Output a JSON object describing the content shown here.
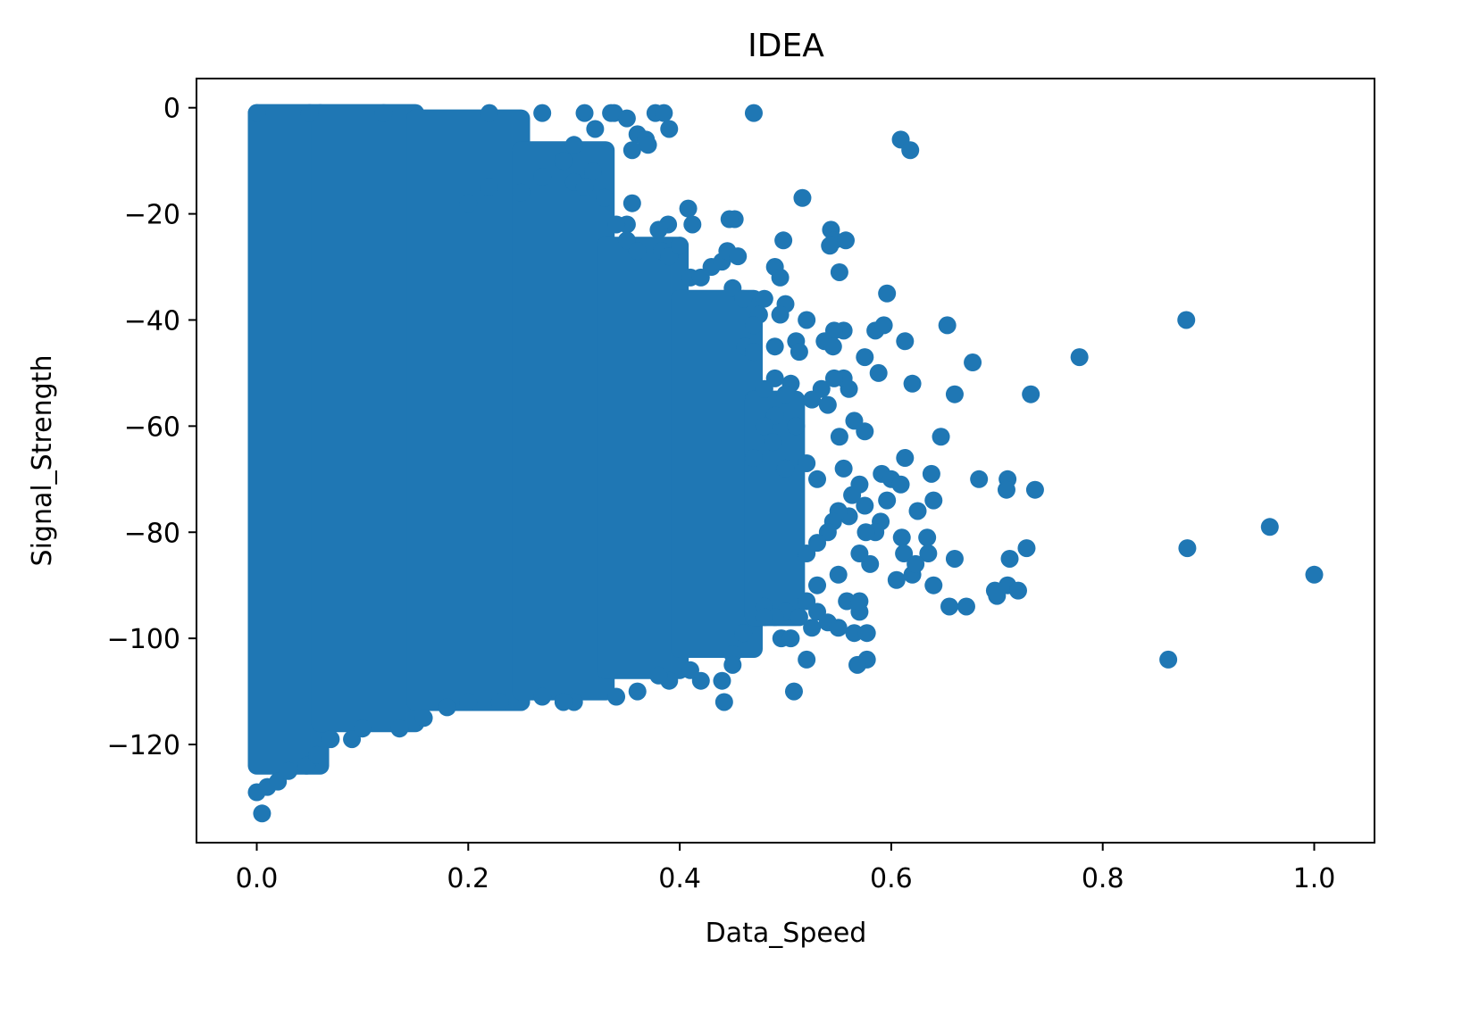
{
  "chart_data": {
    "type": "scatter",
    "title": "IDEA",
    "xlabel": "Data_Speed",
    "ylabel": "Signal_Strength",
    "xlim": [
      -0.057,
      1.057
    ],
    "ylim": [
      -138.5,
      5.5
    ],
    "x_ticks": [
      0.0,
      0.2,
      0.4,
      0.6,
      0.8,
      1.0
    ],
    "x_tick_labels": [
      "0.0",
      "0.2",
      "0.4",
      "0.6",
      "0.8",
      "1.0"
    ],
    "y_ticks": [
      0,
      -20,
      -40,
      -60,
      -80,
      -100,
      -120
    ],
    "y_tick_labels": [
      "0",
      "−20",
      "−40",
      "−60",
      "−80",
      "−100",
      "−120"
    ],
    "grid": false,
    "legend": false,
    "marker_color": "#1f77b4",
    "series": [
      {
        "dense_regions": [
          {
            "x_range": [
              0.0,
              0.06
            ],
            "y_range": [
              -124,
              -1
            ]
          },
          {
            "x_range": [
              0.06,
              0.15
            ],
            "y_range": [
              -116,
              -1
            ]
          },
          {
            "x_range": [
              0.15,
              0.25
            ],
            "y_range": [
              -112,
              -2
            ]
          },
          {
            "x_range": [
              0.25,
              0.33
            ],
            "y_range": [
              -110,
              -8
            ]
          },
          {
            "x_range": [
              0.33,
              0.4
            ],
            "y_range": [
              -106,
              -26
            ]
          },
          {
            "x_range": [
              0.4,
              0.47
            ],
            "y_range": [
              -102,
              -36
            ]
          },
          {
            "x_range": [
              0.47,
              0.51
            ],
            "y_range": [
              -96,
              -55
            ]
          }
        ],
        "points": [
          [
            0.005,
            -133
          ],
          [
            0.0,
            -129
          ],
          [
            0.01,
            -128
          ],
          [
            0.02,
            -127
          ],
          [
            0.03,
            -125
          ],
          [
            0.047,
            -124
          ],
          [
            0.057,
            -122
          ],
          [
            0.07,
            -119
          ],
          [
            0.09,
            -119
          ],
          [
            0.1,
            -117
          ],
          [
            0.135,
            -117
          ],
          [
            0.158,
            -115
          ],
          [
            0.18,
            -113
          ],
          [
            0.0,
            -1
          ],
          [
            0.05,
            -1
          ],
          [
            0.12,
            -1
          ],
          [
            0.22,
            -1
          ],
          [
            0.27,
            -1
          ],
          [
            0.31,
            -1
          ],
          [
            0.335,
            -1
          ],
          [
            0.338,
            -1
          ],
          [
            0.377,
            -1
          ],
          [
            0.385,
            -1
          ],
          [
            0.35,
            -2
          ],
          [
            0.36,
            -5
          ],
          [
            0.368,
            -6
          ],
          [
            0.39,
            -4
          ],
          [
            0.37,
            -7
          ],
          [
            0.355,
            -8
          ],
          [
            0.32,
            -4
          ],
          [
            0.3,
            -7
          ],
          [
            0.29,
            -10
          ],
          [
            0.318,
            -12
          ],
          [
            0.3,
            -14
          ],
          [
            0.31,
            -15
          ],
          [
            0.27,
            -13
          ],
          [
            0.25,
            -16
          ],
          [
            0.22,
            -15
          ],
          [
            0.2,
            -18
          ],
          [
            0.329,
            -17
          ],
          [
            0.355,
            -18
          ],
          [
            0.47,
            -1
          ],
          [
            0.609,
            -6
          ],
          [
            0.618,
            -8
          ],
          [
            0.516,
            -17
          ],
          [
            0.408,
            -19
          ],
          [
            0.389,
            -22
          ],
          [
            0.412,
            -22
          ],
          [
            0.452,
            -21
          ],
          [
            0.447,
            -21
          ],
          [
            0.35,
            -22
          ],
          [
            0.34,
            -22
          ],
          [
            0.35,
            -25
          ],
          [
            0.36,
            -27
          ],
          [
            0.38,
            -23
          ],
          [
            0.383,
            -27
          ],
          [
            0.39,
            -28
          ],
          [
            0.4,
            -26
          ],
          [
            0.41,
            -32
          ],
          [
            0.42,
            -32
          ],
          [
            0.43,
            -30
          ],
          [
            0.44,
            -29
          ],
          [
            0.445,
            -27
          ],
          [
            0.455,
            -28
          ],
          [
            0.49,
            -30
          ],
          [
            0.498,
            -25
          ],
          [
            0.495,
            -32
          ],
          [
            0.543,
            -23
          ],
          [
            0.546,
            -25
          ],
          [
            0.542,
            -26
          ],
          [
            0.557,
            -25
          ],
          [
            0.551,
            -31
          ],
          [
            0.596,
            -35
          ],
          [
            0.45,
            -34
          ],
          [
            0.46,
            -36
          ],
          [
            0.48,
            -36
          ],
          [
            0.5,
            -37
          ],
          [
            0.495,
            -39
          ],
          [
            0.475,
            -39
          ],
          [
            0.47,
            -41
          ],
          [
            0.52,
            -40
          ],
          [
            0.585,
            -42
          ],
          [
            0.593,
            -41
          ],
          [
            0.555,
            -42
          ],
          [
            0.546,
            -42
          ],
          [
            0.537,
            -44
          ],
          [
            0.545,
            -45
          ],
          [
            0.49,
            -45
          ],
          [
            0.51,
            -44
          ],
          [
            0.513,
            -46
          ],
          [
            0.462,
            -45
          ],
          [
            0.47,
            -46
          ],
          [
            0.575,
            -47
          ],
          [
            0.588,
            -50
          ],
          [
            0.613,
            -44
          ],
          [
            0.653,
            -41
          ],
          [
            0.677,
            -48
          ],
          [
            0.778,
            -47
          ],
          [
            0.879,
            -40
          ],
          [
            0.62,
            -52
          ],
          [
            0.66,
            -54
          ],
          [
            0.732,
            -54
          ],
          [
            0.56,
            -53
          ],
          [
            0.555,
            -51
          ],
          [
            0.546,
            -51
          ],
          [
            0.534,
            -53
          ],
          [
            0.525,
            -55
          ],
          [
            0.505,
            -52
          ],
          [
            0.49,
            -51
          ],
          [
            0.5,
            -54
          ],
          [
            0.48,
            -53
          ],
          [
            0.54,
            -56
          ],
          [
            0.565,
            -59
          ],
          [
            0.575,
            -61
          ],
          [
            0.551,
            -62
          ],
          [
            0.51,
            -60
          ],
          [
            0.49,
            -58
          ],
          [
            0.48,
            -60
          ],
          [
            0.488,
            -63
          ],
          [
            0.47,
            -66
          ],
          [
            0.5,
            -68
          ],
          [
            0.52,
            -67
          ],
          [
            0.53,
            -70
          ],
          [
            0.555,
            -68
          ],
          [
            0.57,
            -71
          ],
          [
            0.563,
            -73
          ],
          [
            0.575,
            -75
          ],
          [
            0.591,
            -69
          ],
          [
            0.6,
            -70
          ],
          [
            0.609,
            -71
          ],
          [
            0.613,
            -66
          ],
          [
            0.638,
            -69
          ],
          [
            0.647,
            -62
          ],
          [
            0.683,
            -70
          ],
          [
            0.71,
            -70
          ],
          [
            0.709,
            -72
          ],
          [
            0.736,
            -72
          ],
          [
            0.64,
            -74
          ],
          [
            0.625,
            -76
          ],
          [
            0.596,
            -74
          ],
          [
            0.59,
            -78
          ],
          [
            0.585,
            -80
          ],
          [
            0.576,
            -80
          ],
          [
            0.56,
            -77
          ],
          [
            0.55,
            -76
          ],
          [
            0.545,
            -78
          ],
          [
            0.54,
            -80
          ],
          [
            0.53,
            -82
          ],
          [
            0.52,
            -84
          ],
          [
            0.61,
            -81
          ],
          [
            0.612,
            -84
          ],
          [
            0.634,
            -81
          ],
          [
            0.635,
            -84
          ],
          [
            0.605,
            -89
          ],
          [
            0.62,
            -88
          ],
          [
            0.623,
            -86
          ],
          [
            0.66,
            -85
          ],
          [
            0.712,
            -85
          ],
          [
            0.728,
            -83
          ],
          [
            0.958,
            -79
          ],
          [
            0.88,
            -83
          ],
          [
            1.0,
            -88
          ],
          [
            0.58,
            -86
          ],
          [
            0.57,
            -84
          ],
          [
            0.55,
            -88
          ],
          [
            0.53,
            -90
          ],
          [
            0.52,
            -93
          ],
          [
            0.5,
            -95
          ],
          [
            0.513,
            -96
          ],
          [
            0.53,
            -95
          ],
          [
            0.54,
            -97
          ],
          [
            0.558,
            -93
          ],
          [
            0.57,
            -95
          ],
          [
            0.57,
            -93
          ],
          [
            0.55,
            -98
          ],
          [
            0.525,
            -98
          ],
          [
            0.49,
            -96
          ],
          [
            0.48,
            -94
          ],
          [
            0.48,
            -96
          ],
          [
            0.565,
            -99
          ],
          [
            0.577,
            -99
          ],
          [
            0.577,
            -104
          ],
          [
            0.568,
            -105
          ],
          [
            0.52,
            -104
          ],
          [
            0.496,
            -100
          ],
          [
            0.505,
            -100
          ],
          [
            0.64,
            -90
          ],
          [
            0.655,
            -94
          ],
          [
            0.671,
            -94
          ],
          [
            0.698,
            -91
          ],
          [
            0.7,
            -92
          ],
          [
            0.71,
            -90
          ],
          [
            0.72,
            -91
          ],
          [
            0.862,
            -104
          ],
          [
            0.46,
            -99
          ],
          [
            0.45,
            -103
          ],
          [
            0.45,
            -105
          ],
          [
            0.44,
            -108
          ],
          [
            0.42,
            -108
          ],
          [
            0.41,
            -106
          ],
          [
            0.39,
            -108
          ],
          [
            0.38,
            -107
          ],
          [
            0.36,
            -110
          ],
          [
            0.34,
            -111
          ],
          [
            0.3,
            -112
          ],
          [
            0.29,
            -112
          ],
          [
            0.27,
            -111
          ],
          [
            0.23,
            -112
          ],
          [
            0.2,
            -112
          ],
          [
            0.442,
            -112
          ],
          [
            0.508,
            -110
          ]
        ]
      }
    ]
  }
}
